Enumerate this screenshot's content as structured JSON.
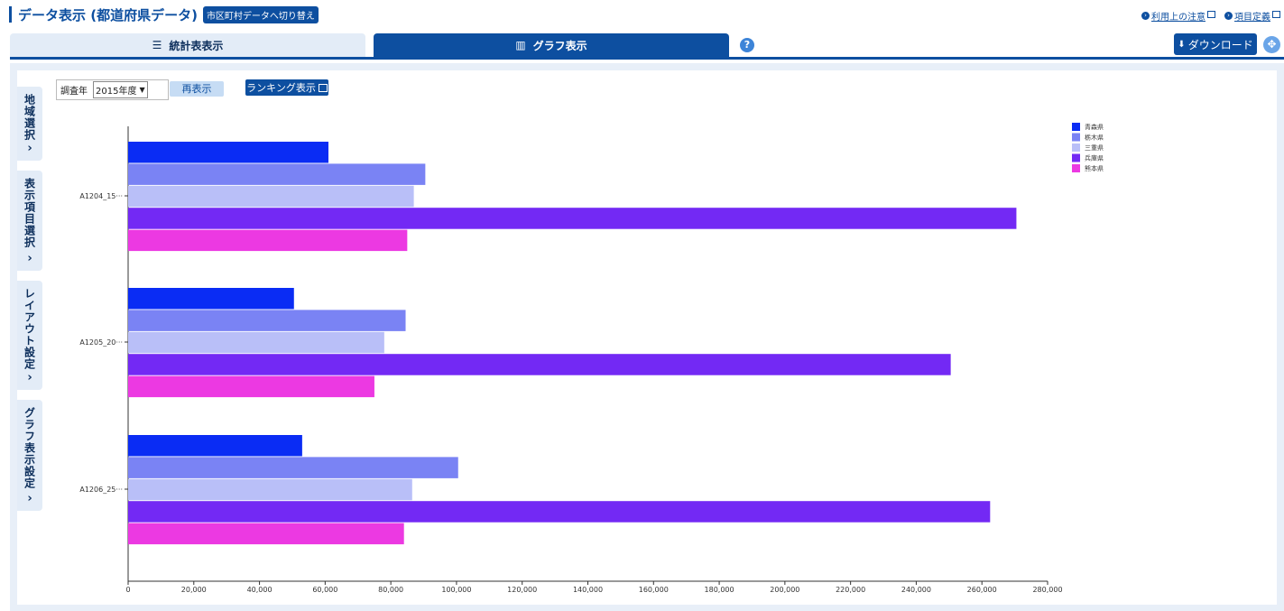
{
  "header": {
    "title": "データ表示 (都道府県データ)",
    "switch_label": "市区町村データへ切り替え",
    "links": [
      "利用上の注意",
      "項目定義"
    ]
  },
  "tabs": {
    "table_label": "統計表表示",
    "graph_label": "グラフ表示",
    "help_icon": "?"
  },
  "toolbar": {
    "download_label": "ダウンロード",
    "expand_icon": "expand-icon"
  },
  "sidebar": {
    "items": [
      {
        "label": "地域選択"
      },
      {
        "label": "表示項目選択"
      },
      {
        "label": "レイアウト設定"
      },
      {
        "label": "グラフ表示設定"
      }
    ]
  },
  "controls": {
    "year_label": "調査年",
    "year_value": "2015年度",
    "redisplay_label": "再表示",
    "ranking_label": "ランキング表示"
  },
  "colors": {
    "accent": "#0d4fa0",
    "series": [
      "#0a2cf4",
      "#7a83f4",
      "#b9bff8",
      "#7329f4",
      "#ec39e2"
    ]
  },
  "chart_data": {
    "type": "bar",
    "orientation": "horizontal",
    "categories": [
      "A1204_15···",
      "A1205_20···",
      "A1206_25···"
    ],
    "series": [
      {
        "name": "青森県",
        "values": [
          61000,
          50500,
          53000
        ]
      },
      {
        "name": "栃木県",
        "values": [
          90500,
          84500,
          100500
        ]
      },
      {
        "name": "三重県",
        "values": [
          87000,
          78000,
          86500
        ]
      },
      {
        "name": "兵庫県",
        "values": [
          270500,
          250500,
          262500
        ]
      },
      {
        "name": "熊本県",
        "values": [
          85000,
          75000,
          84000
        ]
      }
    ],
    "xlim": [
      0,
      280000
    ],
    "xticks": [
      0,
      20000,
      40000,
      60000,
      80000,
      100000,
      120000,
      140000,
      160000,
      180000,
      200000,
      220000,
      240000,
      260000,
      280000
    ],
    "xtick_labels": [
      "0",
      "20,000",
      "40,000",
      "60,000",
      "80,000",
      "100,000",
      "120,000",
      "140,000",
      "160,000",
      "180,000",
      "200,000",
      "220,000",
      "240,000",
      "260,000",
      "280,000"
    ],
    "grid": false,
    "legend_position": "top-right"
  }
}
